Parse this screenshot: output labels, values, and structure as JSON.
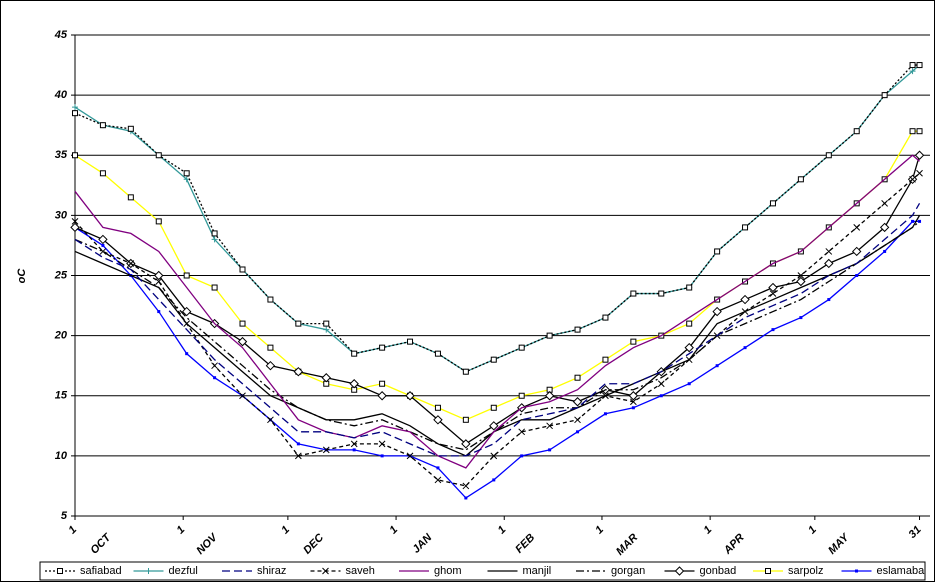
{
  "chart_data": {
    "type": "line",
    "y_label": "oC",
    "x": [
      0,
      8,
      16,
      24,
      32,
      40,
      48,
      56,
      64,
      72,
      80,
      88,
      96,
      104,
      112,
      120,
      128,
      136,
      144,
      152,
      160,
      168,
      176,
      184,
      192,
      200,
      208,
      216,
      224,
      232,
      240,
      242
    ],
    "xlim": [
      0,
      245
    ],
    "xticks": [
      {
        "value": 0,
        "label": "1"
      },
      {
        "value": 31,
        "label": "1"
      },
      {
        "value": 61,
        "label": "1"
      },
      {
        "value": 92,
        "label": "1"
      },
      {
        "value": 123,
        "label": "1"
      },
      {
        "value": 151,
        "label": "1"
      },
      {
        "value": 182,
        "label": "1"
      },
      {
        "value": 212,
        "label": "1"
      },
      {
        "value": 242,
        "label": "31"
      }
    ],
    "months": [
      "OCT",
      "NOV",
      "DEC",
      "JAN",
      "FEB",
      "MAR",
      "APR",
      "MAY"
    ],
    "ylim": [
      5,
      45
    ],
    "yticks": [
      5,
      10,
      15,
      20,
      25,
      30,
      35,
      40,
      45
    ],
    "grid": true,
    "series": [
      {
        "name": "safiabad",
        "color": "#000000",
        "dash": "2,2",
        "marker": "square",
        "values": [
          38.5,
          37.5,
          37.2,
          35,
          33.5,
          28.5,
          25.5,
          23,
          21,
          21,
          18.5,
          19,
          19.5,
          18.5,
          17,
          18,
          19,
          20,
          20.5,
          21.5,
          23.5,
          23.5,
          24,
          27,
          29,
          31,
          33,
          35,
          37,
          40,
          42.5,
          42.5
        ]
      },
      {
        "name": "dezful",
        "color": "#339999",
        "dash": "",
        "marker": "plus",
        "values": [
          39,
          37.5,
          37,
          35,
          33,
          28,
          25.5,
          23,
          21,
          20.5,
          18.5,
          19,
          19.5,
          18.5,
          17,
          18,
          19,
          20,
          20.5,
          21.5,
          23.5,
          23.5,
          24,
          27,
          29,
          31,
          33,
          35,
          37,
          40,
          42,
          42.5
        ]
      },
      {
        "name": "shiraz",
        "color": "#000080",
        "dash": "8,4",
        "marker": "none",
        "values": [
          28,
          26.5,
          25.5,
          23,
          20.5,
          18,
          16,
          14,
          12,
          12,
          11.5,
          12,
          11,
          10,
          10,
          11,
          13,
          13.5,
          14,
          16,
          16,
          17,
          18.5,
          20,
          21.5,
          22.5,
          23.5,
          25,
          26,
          28,
          30,
          31
        ]
      },
      {
        "name": "saveh",
        "color": "#000000",
        "dash": "4,3",
        "marker": "x",
        "values": [
          29.5,
          27,
          26,
          24.5,
          21,
          17.5,
          15,
          13,
          10,
          10.5,
          11,
          11,
          10,
          8,
          7.5,
          10,
          12,
          12.5,
          13,
          15,
          14.5,
          16,
          18,
          20,
          22,
          23.5,
          25,
          27,
          29,
          31,
          33,
          33.5
        ]
      },
      {
        "name": "ghom",
        "color": "#800080",
        "dash": "",
        "marker": "none",
        "values": [
          32,
          29,
          28.5,
          27,
          24,
          21,
          19,
          16,
          13,
          12,
          11.5,
          12.5,
          12,
          10,
          9,
          12,
          14,
          14.5,
          15.5,
          17.5,
          19,
          20,
          21.5,
          23,
          24.5,
          26,
          27,
          29,
          31,
          33,
          35,
          34.5
        ]
      },
      {
        "name": "manjil",
        "color": "#000000",
        "dash": "",
        "marker": "none",
        "values": [
          27,
          26,
          25,
          24,
          21,
          19,
          17,
          15,
          14,
          13,
          13,
          13.5,
          12.5,
          11,
          10,
          12,
          13,
          13,
          14,
          15,
          16,
          17,
          18,
          21,
          22,
          23,
          24,
          25,
          26,
          27.5,
          29,
          30
        ]
      },
      {
        "name": "gorgan",
        "color": "#000000",
        "dash": "8,3,2,3",
        "marker": "none",
        "values": [
          28,
          27,
          25.5,
          24,
          21.5,
          19.5,
          17.5,
          15.5,
          14,
          13,
          12.5,
          13,
          12,
          11,
          10.5,
          12,
          13.5,
          14,
          14,
          15.5,
          15.5,
          16.5,
          18,
          20,
          21,
          22,
          23,
          24.5,
          26,
          27.5,
          29,
          29.5
        ]
      },
      {
        "name": "gonbad",
        "color": "#000000",
        "dash": "",
        "marker": "diamond",
        "values": [
          29,
          28,
          26,
          25,
          22,
          21,
          19.5,
          17.5,
          17,
          16.5,
          16,
          15,
          15,
          13,
          11,
          12.5,
          14,
          15,
          14.5,
          15.5,
          15,
          17,
          19,
          22,
          23,
          24,
          24.5,
          26,
          27,
          29,
          33,
          35
        ]
      },
      {
        "name": "sarpolz",
        "color": "#ffff00",
        "dash": "",
        "marker": "square",
        "values": [
          35,
          33.5,
          31.5,
          29.5,
          25,
          24,
          21,
          19,
          17,
          16,
          15.5,
          16,
          15,
          14,
          13,
          14,
          15,
          15.5,
          16.5,
          18,
          19.5,
          20,
          21,
          23,
          24.5,
          26,
          27,
          29,
          31,
          33,
          37,
          37
        ]
      },
      {
        "name": "eslamaba",
        "color": "#0000ff",
        "dash": "",
        "marker": "smallsquare",
        "values": [
          29,
          27.5,
          25,
          22,
          18.5,
          16.5,
          15,
          13,
          11,
          10.5,
          10.5,
          10,
          10,
          9,
          6.5,
          8,
          10,
          10.5,
          12,
          13.5,
          14,
          15,
          16,
          17.5,
          19,
          20.5,
          21.5,
          23,
          25,
          27,
          29.5,
          29.5
        ]
      }
    ]
  }
}
